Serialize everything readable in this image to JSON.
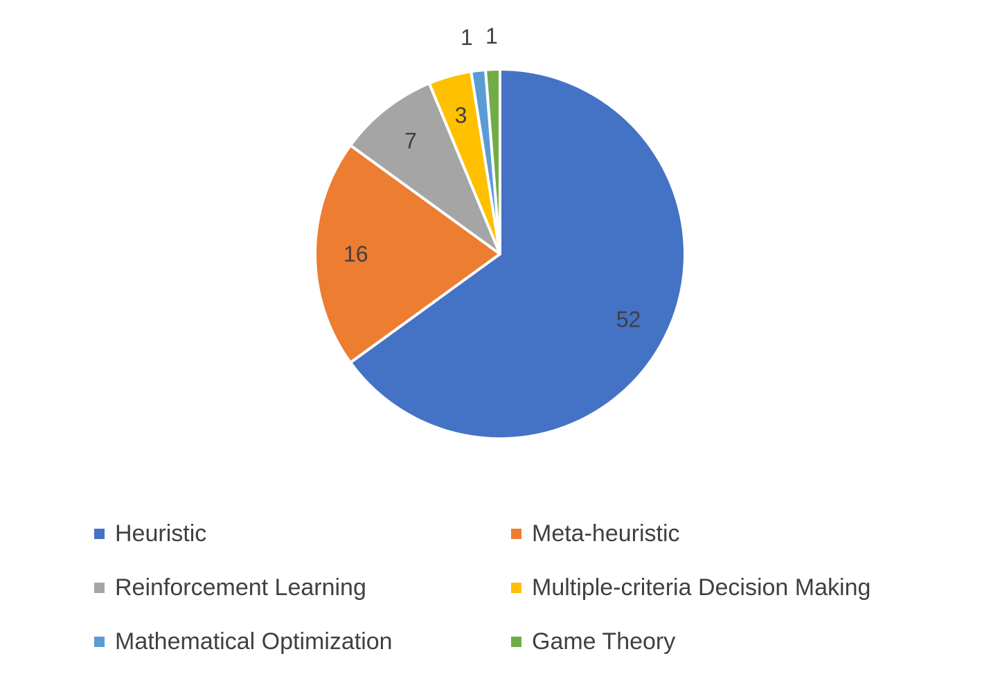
{
  "chart_data": {
    "type": "pie",
    "categories": [
      "Heuristic",
      "Meta-heuristic",
      "Reinforcement Learning",
      "Multiple-criteria Decision Making",
      "Mathematical Optimization",
      "Game Theory"
    ],
    "values": [
      52,
      16,
      7,
      3,
      1,
      1
    ],
    "data_labels": [
      "52",
      "16",
      "7",
      "3",
      "1",
      "1"
    ],
    "colors": [
      "#4472C4",
      "#ED7D31",
      "#A5A5A5",
      "#FFC000",
      "#5B9BD5",
      "#70AD47"
    ],
    "start_angle_deg": 0,
    "direction": "clockwise",
    "legend": {
      "placement": "bottom",
      "entries": [
        "Heuristic",
        "Meta-heuristic",
        "Reinforcement Learning",
        "Multiple-criteria Decision Making",
        "Mathematical Optimization",
        "Game Theory"
      ]
    }
  }
}
